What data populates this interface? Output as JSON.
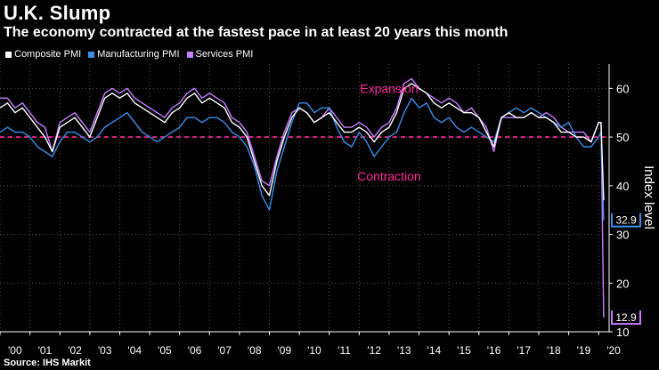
{
  "title": "U.K. Slump",
  "subtitle": "The economy contracted at the fastest pace in at least 20 years this month",
  "source": "Source: IHS Markit",
  "colors": {
    "composite": "#ffffff",
    "manufacturing": "#3b8fe8",
    "services": "#c77dff",
    "threshold": "#ff2b9c",
    "annotation": "#ff2b9c",
    "gridline": "#555555"
  },
  "chart_data": {
    "type": "line",
    "title": "U.K. Slump",
    "ylabel": "Index level",
    "xlabel": "",
    "ylim": [
      10,
      65
    ],
    "xlim": [
      2000,
      2020.35
    ],
    "y_ticks": [
      10,
      20,
      30,
      40,
      50,
      60
    ],
    "x_ticks": [
      "'00",
      "'01",
      "'02",
      "'03",
      "'04",
      "'05",
      "'06",
      "'07",
      "'08",
      "'09",
      "'10",
      "'11",
      "'12",
      "'13",
      "'14",
      "'15",
      "'16",
      "'17",
      "'18",
      "'19",
      "'20"
    ],
    "threshold": 50,
    "annotations": [
      {
        "text": "Expansion",
        "x": 2013.0,
        "y": 60
      },
      {
        "text": "Contraction",
        "x": 2013.0,
        "y": 42
      }
    ],
    "end_labels": [
      {
        "text": "32.9",
        "value": 32.9,
        "series": "Manufacturing PMI"
      },
      {
        "text": "12.9",
        "value": 12.9,
        "series": "Services PMI"
      }
    ],
    "series": [
      {
        "name": "Composite PMI",
        "key": "composite",
        "points": [
          [
            2000.0,
            56
          ],
          [
            2000.25,
            57
          ],
          [
            2000.5,
            55
          ],
          [
            2000.75,
            56
          ],
          [
            2001.0,
            54
          ],
          [
            2001.25,
            52
          ],
          [
            2001.5,
            50
          ],
          [
            2001.75,
            47
          ],
          [
            2002.0,
            52
          ],
          [
            2002.25,
            53
          ],
          [
            2002.5,
            54
          ],
          [
            2002.75,
            52
          ],
          [
            2003.0,
            50
          ],
          [
            2003.25,
            54
          ],
          [
            2003.5,
            58
          ],
          [
            2003.75,
            59
          ],
          [
            2004.0,
            58
          ],
          [
            2004.25,
            59
          ],
          [
            2004.5,
            57
          ],
          [
            2004.75,
            56
          ],
          [
            2005.0,
            55
          ],
          [
            2005.25,
            54
          ],
          [
            2005.5,
            53
          ],
          [
            2005.75,
            55
          ],
          [
            2006.0,
            56
          ],
          [
            2006.25,
            58
          ],
          [
            2006.5,
            59
          ],
          [
            2006.75,
            57
          ],
          [
            2007.0,
            58
          ],
          [
            2007.25,
            57
          ],
          [
            2007.5,
            56
          ],
          [
            2007.75,
            53
          ],
          [
            2008.0,
            52
          ],
          [
            2008.25,
            50
          ],
          [
            2008.5,
            45
          ],
          [
            2008.75,
            40
          ],
          [
            2009.0,
            38
          ],
          [
            2009.25,
            45
          ],
          [
            2009.5,
            50
          ],
          [
            2009.75,
            54
          ],
          [
            2010.0,
            56
          ],
          [
            2010.25,
            55
          ],
          [
            2010.5,
            53
          ],
          [
            2010.75,
            54
          ],
          [
            2011.0,
            55
          ],
          [
            2011.25,
            53
          ],
          [
            2011.5,
            51
          ],
          [
            2011.75,
            51
          ],
          [
            2012.0,
            52
          ],
          [
            2012.25,
            51
          ],
          [
            2012.5,
            49
          ],
          [
            2012.75,
            51
          ],
          [
            2013.0,
            52
          ],
          [
            2013.25,
            55
          ],
          [
            2013.5,
            60
          ],
          [
            2013.75,
            61
          ],
          [
            2014.0,
            60
          ],
          [
            2014.25,
            59
          ],
          [
            2014.5,
            57
          ],
          [
            2014.75,
            56
          ],
          [
            2015.0,
            57
          ],
          [
            2015.25,
            56
          ],
          [
            2015.5,
            55
          ],
          [
            2015.75,
            55
          ],
          [
            2016.0,
            54
          ],
          [
            2016.25,
            51
          ],
          [
            2016.5,
            48
          ],
          [
            2016.75,
            54
          ],
          [
            2017.0,
            55
          ],
          [
            2017.25,
            54
          ],
          [
            2017.5,
            54
          ],
          [
            2017.75,
            55
          ],
          [
            2018.0,
            54
          ],
          [
            2018.25,
            54
          ],
          [
            2018.5,
            53
          ],
          [
            2018.75,
            51
          ],
          [
            2019.0,
            51
          ],
          [
            2019.25,
            50
          ],
          [
            2019.5,
            50
          ],
          [
            2019.75,
            49
          ],
          [
            2020.0,
            53
          ],
          [
            2020.08,
            53
          ],
          [
            2020.17,
            37
          ]
        ]
      },
      {
        "name": "Manufacturing PMI",
        "key": "manufacturing",
        "points": [
          [
            2000.0,
            51
          ],
          [
            2000.25,
            52
          ],
          [
            2000.5,
            51
          ],
          [
            2000.75,
            51
          ],
          [
            2001.0,
            50
          ],
          [
            2001.25,
            48
          ],
          [
            2001.5,
            47
          ],
          [
            2001.75,
            46
          ],
          [
            2002.0,
            49
          ],
          [
            2002.25,
            51
          ],
          [
            2002.5,
            51
          ],
          [
            2002.75,
            50
          ],
          [
            2003.0,
            49
          ],
          [
            2003.25,
            50
          ],
          [
            2003.5,
            52
          ],
          [
            2003.75,
            53
          ],
          [
            2004.0,
            54
          ],
          [
            2004.25,
            55
          ],
          [
            2004.5,
            53
          ],
          [
            2004.75,
            51
          ],
          [
            2005.0,
            50
          ],
          [
            2005.25,
            49
          ],
          [
            2005.5,
            50
          ],
          [
            2005.75,
            51
          ],
          [
            2006.0,
            52
          ],
          [
            2006.25,
            54
          ],
          [
            2006.5,
            54
          ],
          [
            2006.75,
            53
          ],
          [
            2007.0,
            54
          ],
          [
            2007.25,
            54
          ],
          [
            2007.5,
            53
          ],
          [
            2007.75,
            51
          ],
          [
            2008.0,
            50
          ],
          [
            2008.25,
            48
          ],
          [
            2008.5,
            44
          ],
          [
            2008.75,
            38
          ],
          [
            2009.0,
            35
          ],
          [
            2009.25,
            43
          ],
          [
            2009.5,
            48
          ],
          [
            2009.75,
            53
          ],
          [
            2010.0,
            57
          ],
          [
            2010.25,
            57
          ],
          [
            2010.5,
            55
          ],
          [
            2010.75,
            56
          ],
          [
            2011.0,
            56
          ],
          [
            2011.25,
            52
          ],
          [
            2011.5,
            49
          ],
          [
            2011.75,
            48
          ],
          [
            2012.0,
            51
          ],
          [
            2012.25,
            49
          ],
          [
            2012.5,
            46
          ],
          [
            2012.75,
            48
          ],
          [
            2013.0,
            50
          ],
          [
            2013.25,
            51
          ],
          [
            2013.5,
            55
          ],
          [
            2013.75,
            58
          ],
          [
            2014.0,
            56
          ],
          [
            2014.25,
            57
          ],
          [
            2014.5,
            54
          ],
          [
            2014.75,
            53
          ],
          [
            2015.0,
            54
          ],
          [
            2015.25,
            52
          ],
          [
            2015.5,
            51
          ],
          [
            2015.75,
            52
          ],
          [
            2016.0,
            51
          ],
          [
            2016.25,
            50
          ],
          [
            2016.5,
            49
          ],
          [
            2016.75,
            54
          ],
          [
            2017.0,
            55
          ],
          [
            2017.25,
            56
          ],
          [
            2017.5,
            55
          ],
          [
            2017.75,
            56
          ],
          [
            2018.0,
            55
          ],
          [
            2018.25,
            54
          ],
          [
            2018.5,
            53
          ],
          [
            2018.75,
            52
          ],
          [
            2019.0,
            53
          ],
          [
            2019.25,
            50
          ],
          [
            2019.5,
            48
          ],
          [
            2019.75,
            48
          ],
          [
            2020.0,
            50
          ],
          [
            2020.08,
            51
          ],
          [
            2020.17,
            32.9
          ]
        ]
      },
      {
        "name": "Services PMI",
        "key": "services",
        "points": [
          [
            2000.0,
            58
          ],
          [
            2000.25,
            58
          ],
          [
            2000.5,
            56
          ],
          [
            2000.75,
            57
          ],
          [
            2001.0,
            55
          ],
          [
            2001.25,
            53
          ],
          [
            2001.5,
            52
          ],
          [
            2001.75,
            47
          ],
          [
            2002.0,
            53
          ],
          [
            2002.25,
            54
          ],
          [
            2002.5,
            55
          ],
          [
            2002.75,
            53
          ],
          [
            2003.0,
            51
          ],
          [
            2003.25,
            55
          ],
          [
            2003.5,
            59
          ],
          [
            2003.75,
            60
          ],
          [
            2004.0,
            59
          ],
          [
            2004.25,
            60
          ],
          [
            2004.5,
            58
          ],
          [
            2004.75,
            57
          ],
          [
            2005.0,
            56
          ],
          [
            2005.25,
            55
          ],
          [
            2005.5,
            54
          ],
          [
            2005.75,
            56
          ],
          [
            2006.0,
            57
          ],
          [
            2006.25,
            59
          ],
          [
            2006.5,
            60
          ],
          [
            2006.75,
            58
          ],
          [
            2007.0,
            59
          ],
          [
            2007.25,
            58
          ],
          [
            2007.5,
            57
          ],
          [
            2007.75,
            54
          ],
          [
            2008.0,
            53
          ],
          [
            2008.25,
            51
          ],
          [
            2008.5,
            46
          ],
          [
            2008.75,
            41
          ],
          [
            2009.0,
            40
          ],
          [
            2009.25,
            46
          ],
          [
            2009.5,
            51
          ],
          [
            2009.75,
            55
          ],
          [
            2010.0,
            56
          ],
          [
            2010.25,
            55
          ],
          [
            2010.5,
            53
          ],
          [
            2010.75,
            54
          ],
          [
            2011.0,
            56
          ],
          [
            2011.25,
            54
          ],
          [
            2011.5,
            52
          ],
          [
            2011.75,
            52
          ],
          [
            2012.0,
            53
          ],
          [
            2012.25,
            52
          ],
          [
            2012.5,
            50
          ],
          [
            2012.75,
            52
          ],
          [
            2013.0,
            53
          ],
          [
            2013.25,
            56
          ],
          [
            2013.5,
            61
          ],
          [
            2013.75,
            62
          ],
          [
            2014.0,
            60
          ],
          [
            2014.25,
            59
          ],
          [
            2014.5,
            58
          ],
          [
            2014.75,
            57
          ],
          [
            2015.0,
            58
          ],
          [
            2015.25,
            57
          ],
          [
            2015.5,
            55
          ],
          [
            2015.75,
            56
          ],
          [
            2016.0,
            54
          ],
          [
            2016.25,
            52
          ],
          [
            2016.5,
            47
          ],
          [
            2016.75,
            54
          ],
          [
            2017.0,
            54
          ],
          [
            2017.25,
            54
          ],
          [
            2017.5,
            54
          ],
          [
            2017.75,
            55
          ],
          [
            2018.0,
            54
          ],
          [
            2018.25,
            55
          ],
          [
            2018.5,
            54
          ],
          [
            2018.75,
            52
          ],
          [
            2019.0,
            51
          ],
          [
            2019.25,
            51
          ],
          [
            2019.5,
            51
          ],
          [
            2019.75,
            49
          ],
          [
            2020.0,
            53
          ],
          [
            2020.08,
            53
          ],
          [
            2020.17,
            12.9
          ]
        ]
      }
    ]
  }
}
